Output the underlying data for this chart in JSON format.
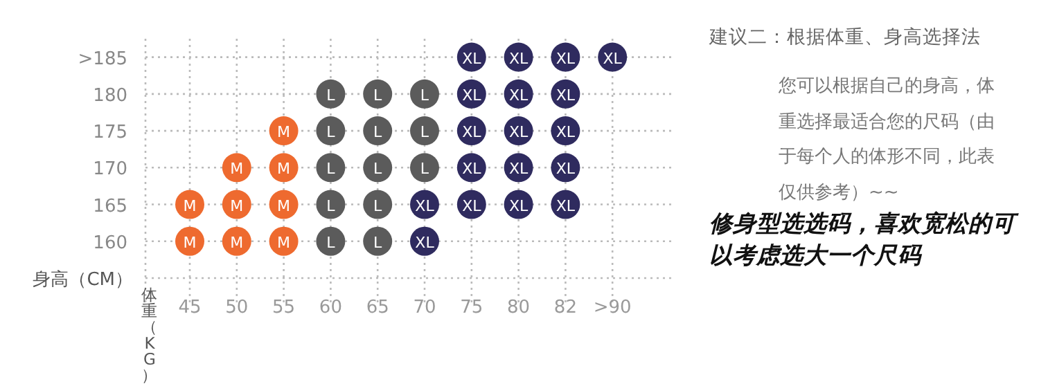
{
  "chart_data": {
    "type": "scatter",
    "title": "建议二：根据体重、身高选择法",
    "xlabel": "体重（KG）",
    "ylabel": "身高（CM）",
    "categories": [
      "45",
      "50",
      "55",
      "60",
      "65",
      "70",
      "75",
      "80",
      "82",
      ">90"
    ],
    "ylim": [
      155,
      187.5
    ],
    "yticks": [
      160,
      165,
      170,
      175,
      180,
      {
        "value": 185,
        "label": ">185"
      }
    ],
    "grid": true,
    "marker": "circle",
    "series": [
      {
        "name": "M",
        "color": "#ee6a2f",
        "x": [
          "45",
          "45",
          "50",
          "50",
          "50",
          "55",
          "55",
          "55",
          "55"
        ],
        "values": [
          160,
          165,
          160,
          165,
          170,
          160,
          165,
          170,
          175
        ]
      },
      {
        "name": "L",
        "color": "#5b5b5b",
        "x": [
          "60",
          "60",
          "60",
          "60",
          "60",
          "65",
          "65",
          "65",
          "65",
          "65",
          "70",
          "70",
          "70"
        ],
        "values": [
          160,
          165,
          170,
          175,
          180,
          160,
          165,
          170,
          175,
          180,
          170,
          175,
          180
        ]
      },
      {
        "name": "XL",
        "color": "#2f2b5f",
        "x": [
          "70",
          "70",
          "75",
          "75",
          "75",
          "75",
          "75",
          "80",
          "80",
          "80",
          "80",
          "80",
          "82",
          "82",
          "82",
          "82",
          "82",
          ">90"
        ],
        "values": [
          160,
          165,
          165,
          170,
          175,
          180,
          185,
          165,
          170,
          175,
          180,
          185,
          165,
          170,
          175,
          180,
          185,
          185
        ]
      }
    ],
    "annotations": [
      "您可以根据自己的身高，体重选择最适合您的尺码（由于每个人的体形不同，此表仅供参考）~~",
      "修身型选选码，喜欢宽松的可以考虑选大一个尺码"
    ]
  }
}
